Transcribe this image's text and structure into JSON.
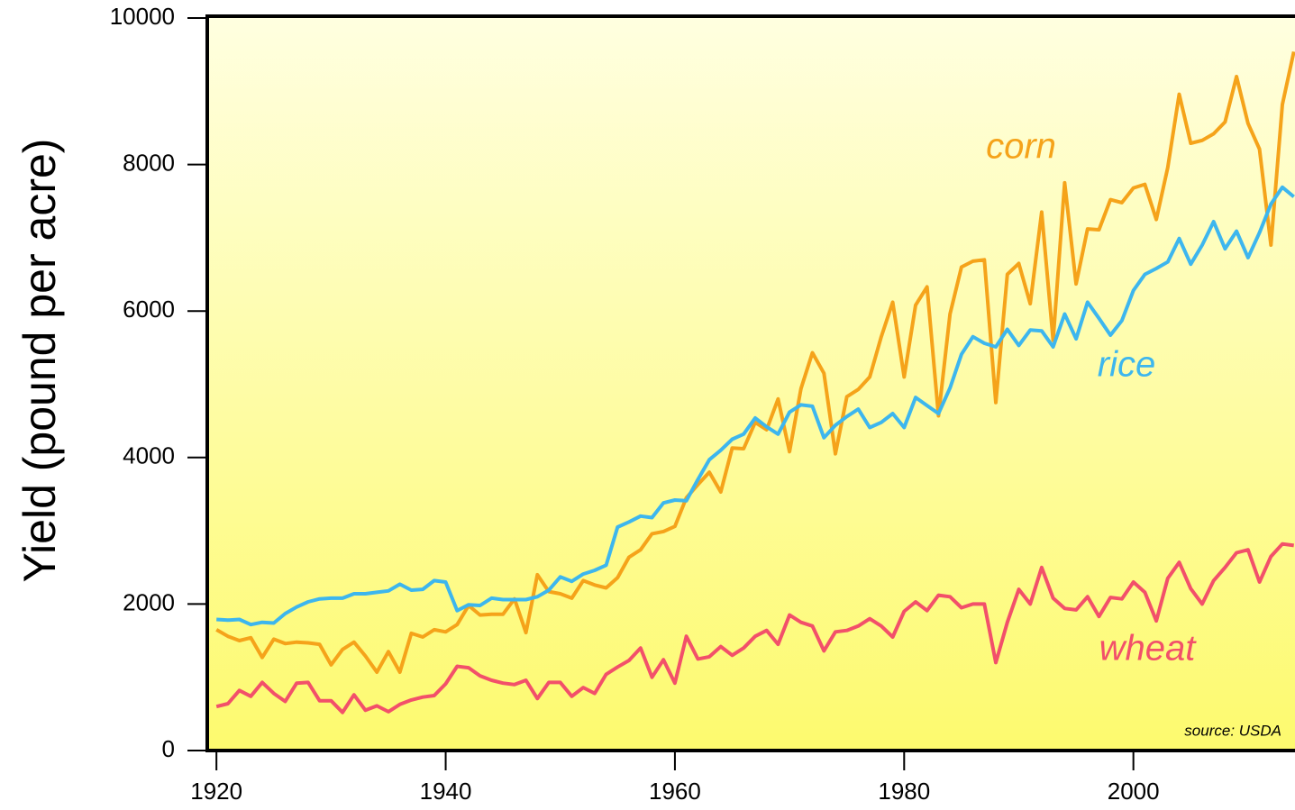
{
  "chart_data": {
    "type": "line",
    "y_label": "Yield (pound per acre)",
    "annotation": "source: USDA",
    "xlim": [
      1919.2,
      2014.1
    ],
    "ylim": [
      0,
      10000
    ],
    "xticks": [
      1920,
      1940,
      1960,
      1980,
      2000
    ],
    "yticks": [
      0,
      2000,
      4000,
      6000,
      8000,
      10000
    ],
    "x": [
      1920,
      1921,
      1922,
      1923,
      1924,
      1925,
      1926,
      1927,
      1928,
      1929,
      1930,
      1931,
      1932,
      1933,
      1934,
      1935,
      1936,
      1937,
      1938,
      1939,
      1940,
      1941,
      1942,
      1943,
      1944,
      1945,
      1946,
      1947,
      1948,
      1949,
      1950,
      1951,
      1952,
      1953,
      1954,
      1955,
      1956,
      1957,
      1958,
      1959,
      1960,
      1961,
      1962,
      1963,
      1964,
      1965,
      1966,
      1967,
      1968,
      1969,
      1970,
      1971,
      1972,
      1973,
      1974,
      1975,
      1976,
      1977,
      1978,
      1979,
      1980,
      1981,
      1982,
      1983,
      1984,
      1985,
      1986,
      1987,
      1988,
      1989,
      1990,
      1991,
      1992,
      1993,
      1994,
      1995,
      1996,
      1997,
      1998,
      1999,
      2000,
      2001,
      2002,
      2003,
      2004,
      2005,
      2006,
      2007,
      2008,
      2009,
      2010,
      2011,
      2012,
      2013,
      2014
    ],
    "series": [
      {
        "name": "corn",
        "color": "#f5a31a",
        "values": [
          1650,
          1560,
          1500,
          1540,
          1270,
          1520,
          1460,
          1480,
          1470,
          1450,
          1170,
          1380,
          1480,
          1290,
          1070,
          1350,
          1070,
          1600,
          1550,
          1650,
          1620,
          1720,
          1980,
          1850,
          1860,
          1860,
          2070,
          1610,
          2400,
          2170,
          2140,
          2080,
          2320,
          2260,
          2220,
          2360,
          2640,
          2740,
          2960,
          2990,
          3060,
          3450,
          3630,
          3800,
          3530,
          4130,
          4120,
          4480,
          4380,
          4800,
          4080,
          4940,
          5430,
          5150,
          4050,
          4830,
          4930,
          5100,
          5650,
          6120,
          5100,
          6080,
          6330,
          4570,
          5960,
          6600,
          6680,
          6700,
          4750,
          6500,
          6650,
          6100,
          7350,
          5600,
          7750,
          6370,
          7120,
          7110,
          7520,
          7480,
          7680,
          7730,
          7250,
          7960,
          8960,
          8290,
          8330,
          8420,
          8580,
          9200,
          8560,
          8210,
          6900,
          8820,
          9540
        ]
      },
      {
        "name": "rice",
        "color": "#3db6ee",
        "values": [
          1790,
          1780,
          1790,
          1720,
          1750,
          1740,
          1870,
          1960,
          2030,
          2070,
          2080,
          2080,
          2140,
          2140,
          2160,
          2180,
          2270,
          2190,
          2200,
          2320,
          2300,
          1910,
          1990,
          1980,
          2080,
          2060,
          2060,
          2060,
          2100,
          2190,
          2370,
          2310,
          2410,
          2460,
          2530,
          3050,
          3120,
          3200,
          3180,
          3380,
          3420,
          3410,
          3700,
          3970,
          4100,
          4250,
          4320,
          4540,
          4420,
          4320,
          4620,
          4720,
          4700,
          4270,
          4440,
          4560,
          4660,
          4410,
          4480,
          4600,
          4410,
          4820,
          4710,
          4600,
          4950,
          5410,
          5650,
          5560,
          5510,
          5750,
          5530,
          5740,
          5730,
          5510,
          5960,
          5620,
          6120,
          5900,
          5670,
          5870,
          6280,
          6500,
          6580,
          6670,
          6990,
          6640,
          6900,
          7220,
          6850,
          7090,
          6730,
          7070,
          7460,
          7690,
          7560
        ]
      },
      {
        "name": "wheat",
        "color": "#f2506a",
        "values": [
          600,
          640,
          820,
          740,
          930,
          780,
          670,
          920,
          930,
          680,
          680,
          520,
          760,
          550,
          610,
          530,
          630,
          690,
          730,
          750,
          910,
          1150,
          1130,
          1020,
          960,
          920,
          900,
          960,
          710,
          930,
          930,
          740,
          860,
          780,
          1040,
          1140,
          1230,
          1400,
          1000,
          1240,
          920,
          1560,
          1250,
          1280,
          1420,
          1300,
          1400,
          1560,
          1640,
          1450,
          1850,
          1750,
          1700,
          1360,
          1620,
          1640,
          1700,
          1800,
          1700,
          1550,
          1900,
          2030,
          1910,
          2120,
          2100,
          1950,
          2000,
          2000,
          1200,
          1750,
          2200,
          2000,
          2500,
          2080,
          1940,
          1920,
          2100,
          1830,
          2090,
          2070,
          2300,
          2160,
          1770,
          2350,
          2570,
          2210,
          2000,
          2320,
          2500,
          2700,
          2740,
          2300,
          2650,
          2820,
          2800
        ]
      }
    ]
  }
}
